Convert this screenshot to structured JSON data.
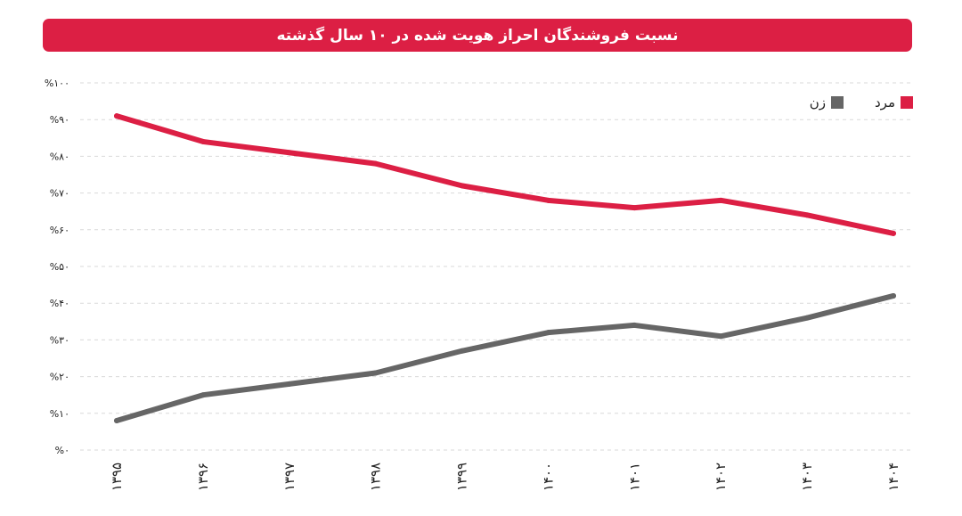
{
  "chart_data": {
    "type": "line",
    "title": "نسبت فروشندگان احراز هویت شده در ۱۰ سال گذشته",
    "categories": [
      "۱۳۹۵",
      "۱۳۹۶",
      "۱۳۹۷",
      "۱۳۹۸",
      "۱۳۹۹",
      "۱۴۰۰",
      "۱۴۰۱",
      "۱۴۰۲",
      "۱۴۰۳",
      "۱۴۰۴"
    ],
    "series": [
      {
        "name": "مرد",
        "color": "#dc1f44",
        "values": [
          91,
          84,
          81,
          78,
          72,
          68,
          66,
          68,
          64,
          59
        ]
      },
      {
        "name": "زن",
        "color": "#666666",
        "values": [
          8,
          15,
          18,
          21,
          27,
          32,
          34,
          31,
          36,
          42
        ]
      }
    ],
    "ylim": [
      0,
      100
    ],
    "yticks": [
      "%۰",
      "%۱۰",
      "%۲۰",
      "%۳۰",
      "%۴۰",
      "%۵۰",
      "%۶۰",
      "%۷۰",
      "%۸۰",
      "%۹۰",
      "%۱۰۰"
    ],
    "grid": true,
    "legend_position": "top-right"
  }
}
